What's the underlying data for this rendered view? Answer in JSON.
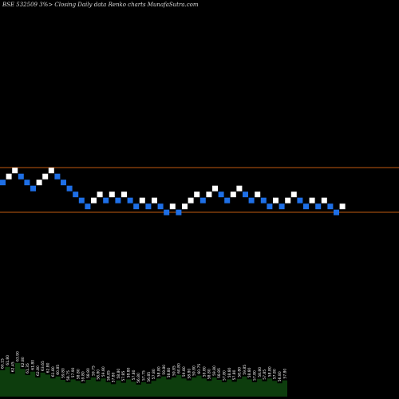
{
  "chart_data": {
    "type": "renko",
    "title": "BSE 532509 3%>  Closing Daily data  Renko  charts MunafaSutra.com",
    "colors": {
      "background": "#000000",
      "up_brick": "#ffffff",
      "down_brick": "#1e6fe6",
      "reference_line": "#c05a10",
      "volume_bars": "#0d3d0d"
    },
    "reference_lines": [
      64.29,
      56.82
    ],
    "bricks": [
      {
        "y": 61.8,
        "dir": "down"
      },
      {
        "y": 62.8,
        "dir": "up"
      },
      {
        "y": 63.8,
        "dir": "up"
      },
      {
        "y": 62.8,
        "dir": "down"
      },
      {
        "y": 61.8,
        "dir": "down"
      },
      {
        "y": 60.8,
        "dir": "down"
      },
      {
        "y": 61.8,
        "dir": "up"
      },
      {
        "y": 62.8,
        "dir": "up"
      },
      {
        "y": 63.8,
        "dir": "up"
      },
      {
        "y": 62.8,
        "dir": "down"
      },
      {
        "y": 61.8,
        "dir": "down"
      },
      {
        "y": 60.8,
        "dir": "down"
      },
      {
        "y": 59.8,
        "dir": "down"
      },
      {
        "y": 58.8,
        "dir": "down"
      },
      {
        "y": 57.8,
        "dir": "down"
      },
      {
        "y": 58.8,
        "dir": "up"
      },
      {
        "y": 59.8,
        "dir": "up"
      },
      {
        "y": 58.8,
        "dir": "down"
      },
      {
        "y": 59.8,
        "dir": "up"
      },
      {
        "y": 58.8,
        "dir": "down"
      },
      {
        "y": 59.8,
        "dir": "up"
      },
      {
        "y": 58.8,
        "dir": "down"
      },
      {
        "y": 57.8,
        "dir": "down"
      },
      {
        "y": 58.8,
        "dir": "up"
      },
      {
        "y": 57.8,
        "dir": "down"
      },
      {
        "y": 58.8,
        "dir": "up"
      },
      {
        "y": 57.8,
        "dir": "down"
      },
      {
        "y": 56.8,
        "dir": "down"
      },
      {
        "y": 57.8,
        "dir": "up"
      },
      {
        "y": 56.8,
        "dir": "down"
      },
      {
        "y": 57.8,
        "dir": "up"
      },
      {
        "y": 58.8,
        "dir": "up"
      },
      {
        "y": 59.8,
        "dir": "up"
      },
      {
        "y": 58.8,
        "dir": "down"
      },
      {
        "y": 59.8,
        "dir": "up"
      },
      {
        "y": 60.8,
        "dir": "up"
      },
      {
        "y": 59.8,
        "dir": "down"
      },
      {
        "y": 58.8,
        "dir": "down"
      },
      {
        "y": 59.8,
        "dir": "up"
      },
      {
        "y": 60.8,
        "dir": "up"
      },
      {
        "y": 59.8,
        "dir": "down"
      },
      {
        "y": 58.8,
        "dir": "down"
      },
      {
        "y": 59.8,
        "dir": "up"
      },
      {
        "y": 58.8,
        "dir": "down"
      },
      {
        "y": 57.8,
        "dir": "down"
      },
      {
        "y": 58.8,
        "dir": "up"
      },
      {
        "y": 57.8,
        "dir": "down"
      },
      {
        "y": 58.8,
        "dir": "up"
      },
      {
        "y": 59.8,
        "dir": "up"
      },
      {
        "y": 58.8,
        "dir": "down"
      },
      {
        "y": 57.8,
        "dir": "down"
      },
      {
        "y": 58.8,
        "dir": "up"
      },
      {
        "y": 57.8,
        "dir": "down"
      },
      {
        "y": 58.8,
        "dir": "up"
      },
      {
        "y": 57.8,
        "dir": "down"
      },
      {
        "y": 56.8,
        "dir": "down"
      },
      {
        "y": 57.8,
        "dir": "up"
      }
    ],
    "volume_labels": [
      "60.15",
      "61.80",
      "62.45",
      "63.90",
      "62.80",
      "61.35",
      "61.80",
      "62.80",
      "63.65",
      "62.80",
      "61.80",
      "60.85",
      "59.80",
      "58.75",
      "57.90",
      "58.80",
      "59.80",
      "58.80",
      "59.75",
      "58.80",
      "59.80",
      "58.85",
      "57.80",
      "58.80",
      "57.85",
      "58.80",
      "57.80",
      "56.80",
      "57.75",
      "56.85",
      "57.80",
      "58.80",
      "59.80",
      "58.80",
      "59.85",
      "60.80",
      "59.80",
      "58.80",
      "59.80",
      "60.75",
      "59.80",
      "58.80",
      "59.80",
      "58.85",
      "57.80",
      "58.80",
      "57.80",
      "58.80",
      "59.85",
      "58.80",
      "57.80",
      "58.80",
      "57.85",
      "58.80",
      "57.80",
      "56.80",
      "57.80"
    ],
    "volume_levels": [
      0.55,
      0.62,
      0.48,
      0.7,
      0.58,
      0.45,
      0.52,
      0.4,
      0.5,
      0.46,
      0.38,
      0.42,
      0.35,
      0.3,
      0.36,
      0.33,
      0.28,
      0.35,
      0.4,
      0.32,
      0.38,
      0.3,
      0.26,
      0.34,
      0.29,
      0.36,
      0.31,
      0.25,
      0.3,
      0.27,
      0.33,
      0.38,
      0.42,
      0.36,
      0.4,
      0.45,
      0.38,
      0.34,
      0.4,
      0.44,
      0.38,
      0.33,
      0.4,
      0.35,
      0.3,
      0.36,
      0.31,
      0.37,
      0.42,
      0.36,
      0.3,
      0.37,
      0.32,
      0.38,
      0.33,
      0.28,
      0.34
    ],
    "grid": false,
    "legend": "none"
  }
}
